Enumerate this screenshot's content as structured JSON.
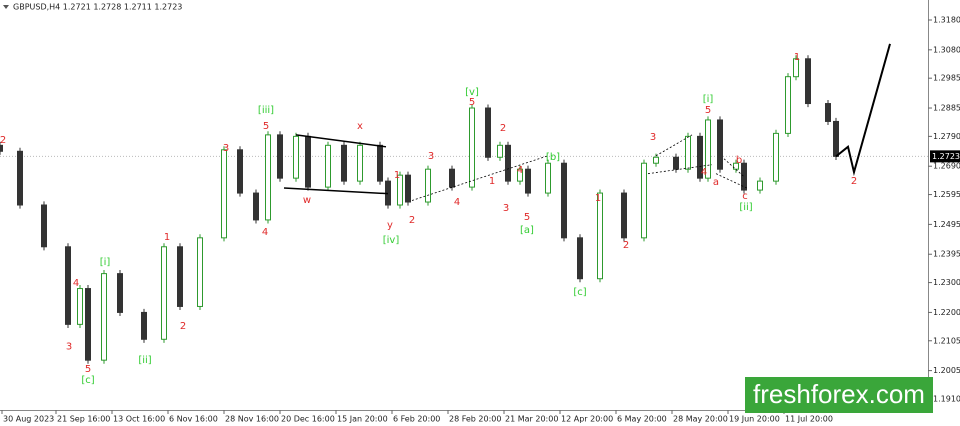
{
  "chart_data": {
    "type": "candlestick",
    "header": "GBPUSD,H4  1.2721 1.2728 1.2711 1.2723",
    "watermark": "freshforex.com",
    "up_color": "#2e9a2e",
    "down_color": "#333333",
    "xlim": [
      0,
      232
    ],
    "ylim": [
      1.1873,
      1.3247
    ],
    "xticks": [
      {
        "value": 0.5,
        "label": "30 Aug 2023"
      },
      {
        "value": 14,
        "label": "21 Sep 16:00"
      },
      {
        "value": 28,
        "label": "13 Oct 16:00"
      },
      {
        "value": 42,
        "label": "6 Nov 16:00"
      },
      {
        "value": 56,
        "label": "28 Nov 16:00"
      },
      {
        "value": 70,
        "label": "20 Dec 16:00"
      },
      {
        "value": 84,
        "label": "15 Jan 20:00"
      },
      {
        "value": 98,
        "label": "6 Feb 20:00"
      },
      {
        "value": 112,
        "label": "28 Feb 20:00"
      },
      {
        "value": 126,
        "label": "21 Mar 20:00"
      },
      {
        "value": 140,
        "label": "12 Apr 20:00"
      },
      {
        "value": 154,
        "label": "6 May 20:00"
      },
      {
        "value": 168,
        "label": "28 May 20:00"
      },
      {
        "value": 182,
        "label": "19 Jun 20:00"
      },
      {
        "value": 196,
        "label": "11 Jul 20:00"
      }
    ],
    "yticks": [
      {
        "value": 1.318,
        "label": "1.3180"
      },
      {
        "value": 1.308,
        "label": "1.3080"
      },
      1.2985,
      1.2885,
      {
        "value": 1.279,
        "label": "1.2790"
      },
      {
        "value": 1.269,
        "label": "1.2690"
      },
      1.2595,
      1.2495,
      1.2395,
      {
        "value": 1.23,
        "label": "1.2300"
      },
      {
        "value": 1.22,
        "label": "1.2200"
      },
      1.2105,
      1.2005,
      {
        "value": 1.191,
        "label": "1.1910"
      }
    ],
    "current_price": 1.2723,
    "x": [
      0,
      5,
      11,
      17,
      20,
      22,
      26,
      30,
      36,
      41,
      45,
      50,
      56,
      60,
      64,
      67,
      70,
      74,
      77,
      82,
      86,
      90,
      95,
      97,
      100,
      102,
      107,
      113,
      118,
      122,
      125,
      127,
      130,
      132,
      137,
      141,
      145,
      150,
      156,
      161,
      164,
      169,
      172,
      175,
      177,
      180,
      184,
      186,
      190,
      194,
      197,
      199,
      202,
      207,
      209
    ],
    "open": [
      1.276,
      1.274,
      1.256,
      1.242,
      1.216,
      1.228,
      1.204,
      1.233,
      1.22,
      1.211,
      1.242,
      1.222,
      1.245,
      1.2745,
      1.26,
      1.251,
      1.2795,
      1.265,
      1.279,
      1.262,
      1.276,
      1.264,
      1.276,
      1.264,
      1.256,
      1.266,
      1.257,
      1.268,
      1.262,
      1.2885,
      1.272,
      1.276,
      1.264,
      1.268,
      1.26,
      1.27,
      1.245,
      1.2313,
      1.26,
      1.245,
      1.27,
      1.272,
      1.268,
      1.279,
      1.265,
      1.2845,
      1.268,
      1.27,
      1.261,
      1.264,
      1.28,
      1.299,
      1.305,
      1.29,
      1.284
    ],
    "high": [
      1.2772,
      1.2752,
      1.2572,
      1.2432,
      1.2292,
      1.2292,
      1.2342,
      1.2342,
      1.2212,
      1.2432,
      1.2432,
      1.2462,
      1.2757,
      1.2757,
      1.2612,
      1.2807,
      1.2807,
      1.2802,
      1.2802,
      1.2772,
      1.2772,
      1.2772,
      1.2772,
      1.2652,
      1.2672,
      1.2672,
      1.2692,
      1.2692,
      1.2897,
      1.2897,
      1.2772,
      1.2772,
      1.2692,
      1.2692,
      1.2712,
      1.2712,
      1.2462,
      1.2612,
      1.2612,
      1.2712,
      1.2732,
      1.2732,
      1.2802,
      1.2802,
      1.2857,
      1.2857,
      1.2712,
      1.2712,
      1.2652,
      1.2812,
      1.3002,
      1.3062,
      1.3062,
      1.2912,
      1.2852
    ],
    "low": [
      1.2728,
      1.2548,
      1.2408,
      1.2148,
      1.2148,
      1.2028,
      1.2028,
      1.2188,
      1.2098,
      1.2098,
      1.2208,
      1.2208,
      1.2438,
      1.2588,
      1.2498,
      1.2498,
      1.2638,
      1.2638,
      1.2608,
      1.2608,
      1.2628,
      1.2628,
      1.2628,
      1.2548,
      1.2548,
      1.2558,
      1.2558,
      1.2608,
      1.2608,
      1.2708,
      1.2708,
      1.2628,
      1.2628,
      1.2588,
      1.2588,
      1.2438,
      1.2301,
      1.2301,
      1.2438,
      1.2438,
      1.2688,
      1.2668,
      1.2668,
      1.2638,
      1.2638,
      1.2668,
      1.2668,
      1.2598,
      1.2598,
      1.2628,
      1.2788,
      1.2978,
      1.2888,
      1.2828,
      1.2711
    ],
    "close": [
      1.274,
      1.256,
      1.242,
      1.216,
      1.228,
      1.204,
      1.233,
      1.22,
      1.211,
      1.242,
      1.222,
      1.245,
      1.2745,
      1.26,
      1.251,
      1.2795,
      1.265,
      1.279,
      1.262,
      1.276,
      1.264,
      1.276,
      1.264,
      1.256,
      1.266,
      1.257,
      1.268,
      1.262,
      1.2885,
      1.272,
      1.276,
      1.264,
      1.268,
      1.26,
      1.27,
      1.245,
      1.2313,
      1.26,
      1.245,
      1.27,
      1.272,
      1.268,
      1.279,
      1.265,
      1.2845,
      1.268,
      1.27,
      1.261,
      1.264,
      1.28,
      1.299,
      1.305,
      1.29,
      1.284,
      1.2723
    ],
    "forecast": {
      "color": "#000000",
      "x": [
        209,
        212,
        213.5,
        222.5
      ],
      "values": [
        1.2723,
        1.2755,
        1.267,
        1.31
      ]
    },
    "lines": [
      {
        "color": "#000000",
        "dash": false,
        "x": [
          74,
          96.5
        ],
        "values": [
          1.2795,
          1.2755
        ]
      },
      {
        "color": "#000000",
        "dash": false,
        "x": [
          71,
          97
        ],
        "values": [
          1.2617,
          1.2598
        ]
      },
      {
        "color": "#000000",
        "dash": true,
        "x": [
          103,
          137
        ],
        "values": [
          1.2575,
          1.2725
        ]
      },
      {
        "color": "#000000",
        "dash": true,
        "x": [
          164,
          173
        ],
        "values": [
          1.2725,
          1.2795
        ]
      },
      {
        "color": "#000000",
        "dash": true,
        "x": [
          162,
          178
        ],
        "values": [
          1.2665,
          1.2695
        ]
      },
      {
        "color": "#000000",
        "dash": true,
        "x": [
          181,
          186
        ],
        "values": [
          1.2715,
          1.2655
        ]
      },
      {
        "color": "#000000",
        "dash": true,
        "x": [
          179,
          187
        ],
        "values": [
          1.2665,
          1.2615
        ]
      }
    ],
    "annotations": [
      {
        "text": "2",
        "color": "#e02a2a",
        "x": 0.75,
        "y": 1.2778
      },
      {
        "text": "4",
        "color": "#e02a2a",
        "x": 19,
        "y": 1.2299
      },
      {
        "text": "3",
        "color": "#e02a2a",
        "x": 17.25,
        "y": 1.2085
      },
      {
        "text": "5",
        "color": "#e02a2a",
        "x": 22,
        "y": 1.2011
      },
      {
        "text": "[c]",
        "color": "#33cc33",
        "x": 22,
        "y": 1.1974
      },
      {
        "text": "[i]",
        "color": "#33cc33",
        "x": 26.25,
        "y": 1.2369
      },
      {
        "text": "[ii]",
        "color": "#33cc33",
        "x": 36.25,
        "y": 1.2041
      },
      {
        "text": "1",
        "color": "#e02a2a",
        "x": 41.75,
        "y": 1.2453
      },
      {
        "text": "2",
        "color": "#e02a2a",
        "x": 45.75,
        "y": 1.2155
      },
      {
        "text": "3",
        "color": "#e02a2a",
        "x": 56.5,
        "y": 1.2751
      },
      {
        "text": "4",
        "color": "#e02a2a",
        "x": 66.25,
        "y": 1.247
      },
      {
        "text": "5",
        "color": "#e02a2a",
        "x": 66.5,
        "y": 1.2825
      },
      {
        "text": "[iii]",
        "color": "#33cc33",
        "x": 66.5,
        "y": 1.2878
      },
      {
        "text": "x",
        "color": "#e02a2a",
        "x": 90,
        "y": 1.2825
      },
      {
        "text": "w",
        "color": "#e02a2a",
        "x": 76.75,
        "y": 1.2577
      },
      {
        "text": "y",
        "color": "#e02a2a",
        "x": 97.5,
        "y": 1.2493
      },
      {
        "text": "[iv]",
        "color": "#33cc33",
        "x": 97.75,
        "y": 1.2443
      },
      {
        "text": "1",
        "color": "#e02a2a",
        "x": 99.25,
        "y": 1.2661
      },
      {
        "text": "2",
        "color": "#e02a2a",
        "x": 103,
        "y": 1.251
      },
      {
        "text": "3",
        "color": "#e02a2a",
        "x": 107.75,
        "y": 1.2724
      },
      {
        "text": "4",
        "color": "#e02a2a",
        "x": 114.25,
        "y": 1.257
      },
      {
        "text": "5",
        "color": "#e02a2a",
        "x": 118,
        "y": 1.2905
      },
      {
        "text": "[v]",
        "color": "#33cc33",
        "x": 118,
        "y": 1.2939
      },
      {
        "text": "1",
        "color": "#e02a2a",
        "x": 123,
        "y": 1.2641
      },
      {
        "text": "2",
        "color": "#e02a2a",
        "x": 125.75,
        "y": 1.2818
      },
      {
        "text": "4",
        "color": "#e02a2a",
        "x": 130,
        "y": 1.2677
      },
      {
        "text": "3",
        "color": "#e02a2a",
        "x": 126.5,
        "y": 1.255
      },
      {
        "text": "5",
        "color": "#e02a2a",
        "x": 131.75,
        "y": 1.252
      },
      {
        "text": "[a]",
        "color": "#33cc33",
        "x": 131.75,
        "y": 1.2476
      },
      {
        "text": "[b]",
        "color": "#33cc33",
        "x": 138.25,
        "y": 1.2721
      },
      {
        "text": "[c]",
        "color": "#33cc33",
        "x": 145,
        "y": 1.2269
      },
      {
        "text": "1",
        "color": "#e02a2a",
        "x": 149.5,
        "y": 1.2584
      },
      {
        "text": "2",
        "color": "#e02a2a",
        "x": 156.5,
        "y": 1.2426
      },
      {
        "text": "3",
        "color": "#e02a2a",
        "x": 163.25,
        "y": 1.2788
      },
      {
        "text": "4",
        "color": "#e02a2a",
        "x": 176,
        "y": 1.2671
      },
      {
        "text": "5",
        "color": "#e02a2a",
        "x": 177,
        "y": 1.2878
      },
      {
        "text": "[i]",
        "color": "#33cc33",
        "x": 177,
        "y": 1.2915
      },
      {
        "text": "a",
        "color": "#e02a2a",
        "x": 179,
        "y": 1.2637
      },
      {
        "text": "b",
        "color": "#e02a2a",
        "x": 184.75,
        "y": 1.2711
      },
      {
        "text": "c",
        "color": "#e02a2a",
        "x": 186.25,
        "y": 1.259
      },
      {
        "text": "[ii]",
        "color": "#33cc33",
        "x": 186.5,
        "y": 1.2554
      },
      {
        "text": "1",
        "color": "#e02a2a",
        "x": 199.25,
        "y": 1.3056
      },
      {
        "text": "2",
        "color": "#e02a2a",
        "x": 213.5,
        "y": 1.2641
      }
    ]
  }
}
